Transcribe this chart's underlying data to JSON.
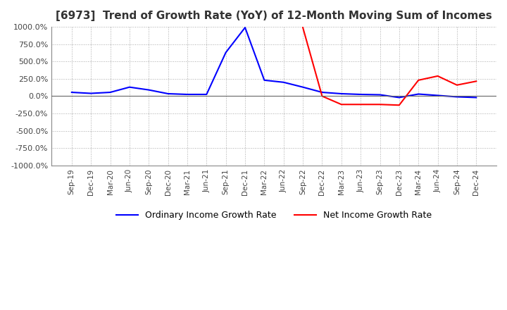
{
  "title": "[6973]  Trend of Growth Rate (YoY) of 12-Month Moving Sum of Incomes",
  "title_fontsize": 11,
  "ylim": [
    -1000,
    1000
  ],
  "yticks": [
    -1000,
    -750,
    -500,
    -250,
    0,
    250,
    500,
    750,
    1000
  ],
  "ytick_labels": [
    "-1000.0%",
    "-750.0%",
    "-500.0%",
    "-250.0%",
    "0.0%",
    "250.0%",
    "500.0%",
    "750.0%",
    "1000.0%"
  ],
  "x_labels": [
    "Sep-19",
    "Dec-19",
    "Mar-20",
    "Jun-20",
    "Sep-20",
    "Dec-20",
    "Mar-21",
    "Jun-21",
    "Sep-21",
    "Dec-21",
    "Mar-22",
    "Jun-22",
    "Sep-22",
    "Dec-22",
    "Mar-23",
    "Jun-23",
    "Sep-23",
    "Dec-23",
    "Mar-24",
    "Jun-24",
    "Sep-24",
    "Dec-24"
  ],
  "ordinary_income": [
    55,
    40,
    55,
    130,
    90,
    35,
    25,
    25,
    630,
    990,
    230,
    200,
    130,
    55,
    35,
    25,
    20,
    -20,
    30,
    10,
    -10,
    -20
  ],
  "net_income": [
    null,
    null,
    null,
    null,
    null,
    null,
    null,
    null,
    null,
    null,
    null,
    null,
    990,
    0,
    -120,
    -120,
    -120,
    -130,
    230,
    290,
    160,
    215
  ],
  "ordinary_color": "#0000ff",
  "net_color": "#ff0000",
  "line_width": 1.5,
  "background_color": "#ffffff",
  "grid_color": "#aaaaaa",
  "legend_labels": [
    "Ordinary Income Growth Rate",
    "Net Income Growth Rate"
  ]
}
